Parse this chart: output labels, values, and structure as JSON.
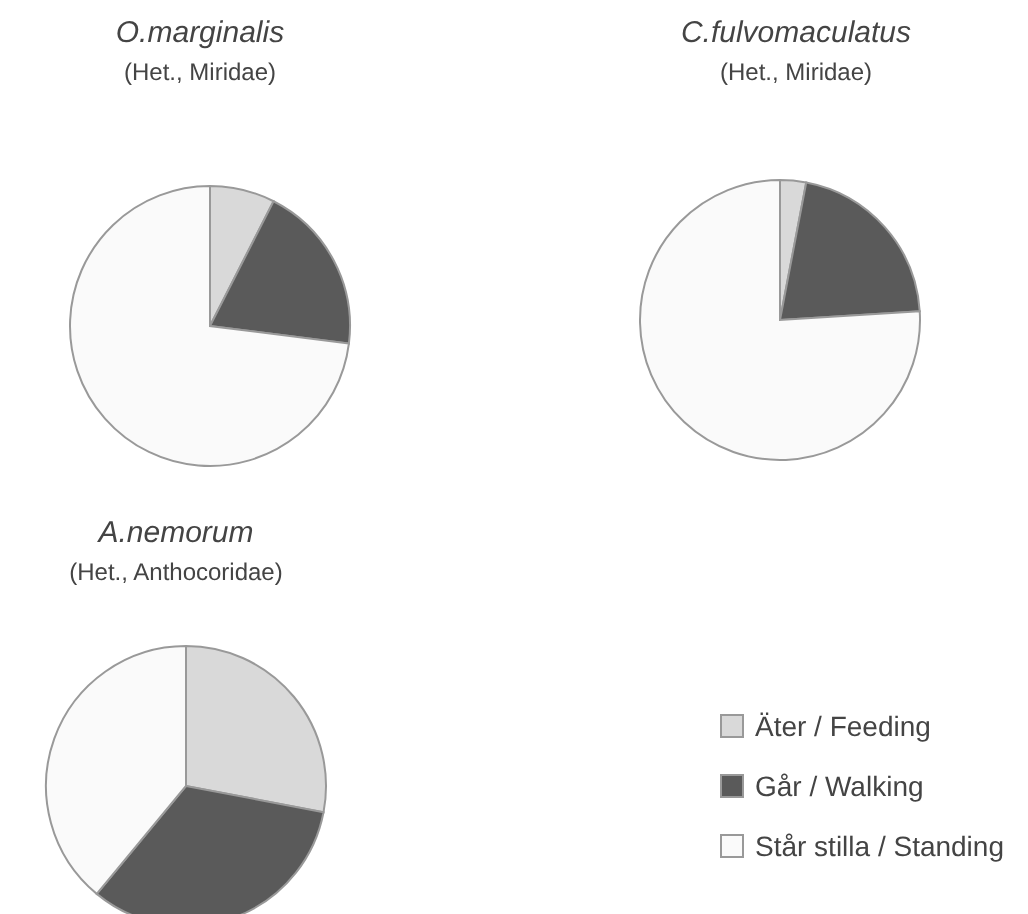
{
  "chart_data": [
    {
      "type": "pie",
      "title": "O.marginalis",
      "subtitle": "(Het., Miridae)",
      "categories": [
        null,
        null,
        null
      ],
      "values": [
        7.5,
        19.5,
        73
      ],
      "colors": [
        "#d9d9d9",
        "#5a5a5a",
        "#fafafa"
      ]
    },
    {
      "type": "pie",
      "title": "C.fulvomaculatus",
      "subtitle": "(Het., Miridae)",
      "categories": [
        null,
        null,
        null
      ],
      "values": [
        3,
        21,
        76
      ],
      "colors": [
        "#d9d9d9",
        "#5a5a5a",
        "#fafafa"
      ]
    },
    {
      "type": "pie",
      "title": "A.nemorum",
      "subtitle": "(Het., Anthocoridae)",
      "categories": [
        "Äter / Feeding",
        "Går / Walking",
        "Står stilla / Standing"
      ],
      "values": [
        28,
        33,
        39
      ],
      "colors": [
        "#d9d9d9",
        "#5a5a5a",
        "#fafafa"
      ],
      "legend": "right"
    }
  ]
}
